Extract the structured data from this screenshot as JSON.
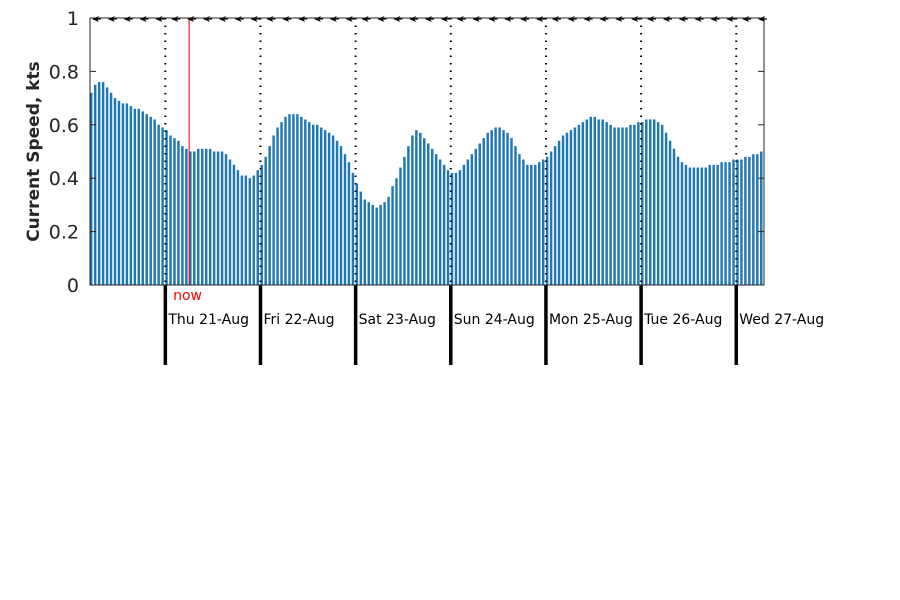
{
  "chart_data": {
    "type": "bar",
    "ylabel": "Current Speed, kts",
    "ylim": [
      0,
      1
    ],
    "yticks": [
      "0",
      "0.2",
      "0.4",
      "0.6",
      "0.8",
      "1"
    ],
    "x_start": "2025-08-20 05:00",
    "x_step_hours": 1,
    "day_labels": [
      "Thu 21-Aug",
      "Fri 22-Aug",
      "Sat 23-Aug",
      "Sun 24-Aug",
      "Mon 25-Aug",
      "Tue 26-Aug",
      "Wed 27-Aug"
    ],
    "now_label": "now",
    "now_time": "2025-08-21 06:00",
    "direction_arrows": "west",
    "series": [
      {
        "color": "#1f77b4",
        "values": [
          0.72,
          0.75,
          0.76,
          0.76,
          0.74,
          0.72,
          0.7,
          0.69,
          0.68,
          0.68,
          0.67,
          0.66,
          0.66,
          0.65,
          0.64,
          0.63,
          0.62,
          0.6,
          0.59,
          0.58,
          0.56,
          0.55,
          0.54,
          0.52,
          0.51,
          0.5,
          0.5,
          0.51,
          0.51,
          0.51,
          0.51,
          0.5,
          0.5,
          0.5,
          0.49,
          0.47,
          0.45,
          0.43,
          0.41,
          0.41,
          0.4,
          0.41,
          0.43,
          0.45,
          0.48,
          0.52,
          0.56,
          0.59,
          0.61,
          0.63,
          0.64,
          0.64,
          0.64,
          0.63,
          0.62,
          0.61,
          0.6,
          0.6,
          0.59,
          0.58,
          0.57,
          0.56,
          0.54,
          0.52,
          0.49,
          0.46,
          0.42,
          0.38,
          0.35,
          0.32,
          0.31,
          0.3,
          0.29,
          0.3,
          0.31,
          0.33,
          0.37,
          0.4,
          0.44,
          0.48,
          0.52,
          0.56,
          0.58,
          0.57,
          0.55,
          0.53,
          0.51,
          0.49,
          0.47,
          0.45,
          0.43,
          0.42,
          0.42,
          0.43,
          0.45,
          0.47,
          0.49,
          0.51,
          0.53,
          0.55,
          0.57,
          0.58,
          0.59,
          0.59,
          0.58,
          0.57,
          0.55,
          0.52,
          0.49,
          0.47,
          0.45,
          0.45,
          0.45,
          0.46,
          0.47,
          0.48,
          0.5,
          0.52,
          0.54,
          0.56,
          0.57,
          0.58,
          0.59,
          0.6,
          0.61,
          0.62,
          0.63,
          0.63,
          0.62,
          0.62,
          0.61,
          0.6,
          0.59,
          0.59,
          0.59,
          0.59,
          0.6,
          0.6,
          0.61,
          0.61,
          0.62,
          0.62,
          0.62,
          0.61,
          0.6,
          0.57,
          0.54,
          0.51,
          0.48,
          0.46,
          0.45,
          0.44,
          0.44,
          0.44,
          0.44,
          0.44,
          0.45,
          0.45,
          0.45,
          0.46,
          0.46,
          0.46,
          0.47,
          0.47,
          0.47,
          0.48,
          0.48,
          0.49,
          0.49,
          0.5
        ]
      }
    ]
  }
}
